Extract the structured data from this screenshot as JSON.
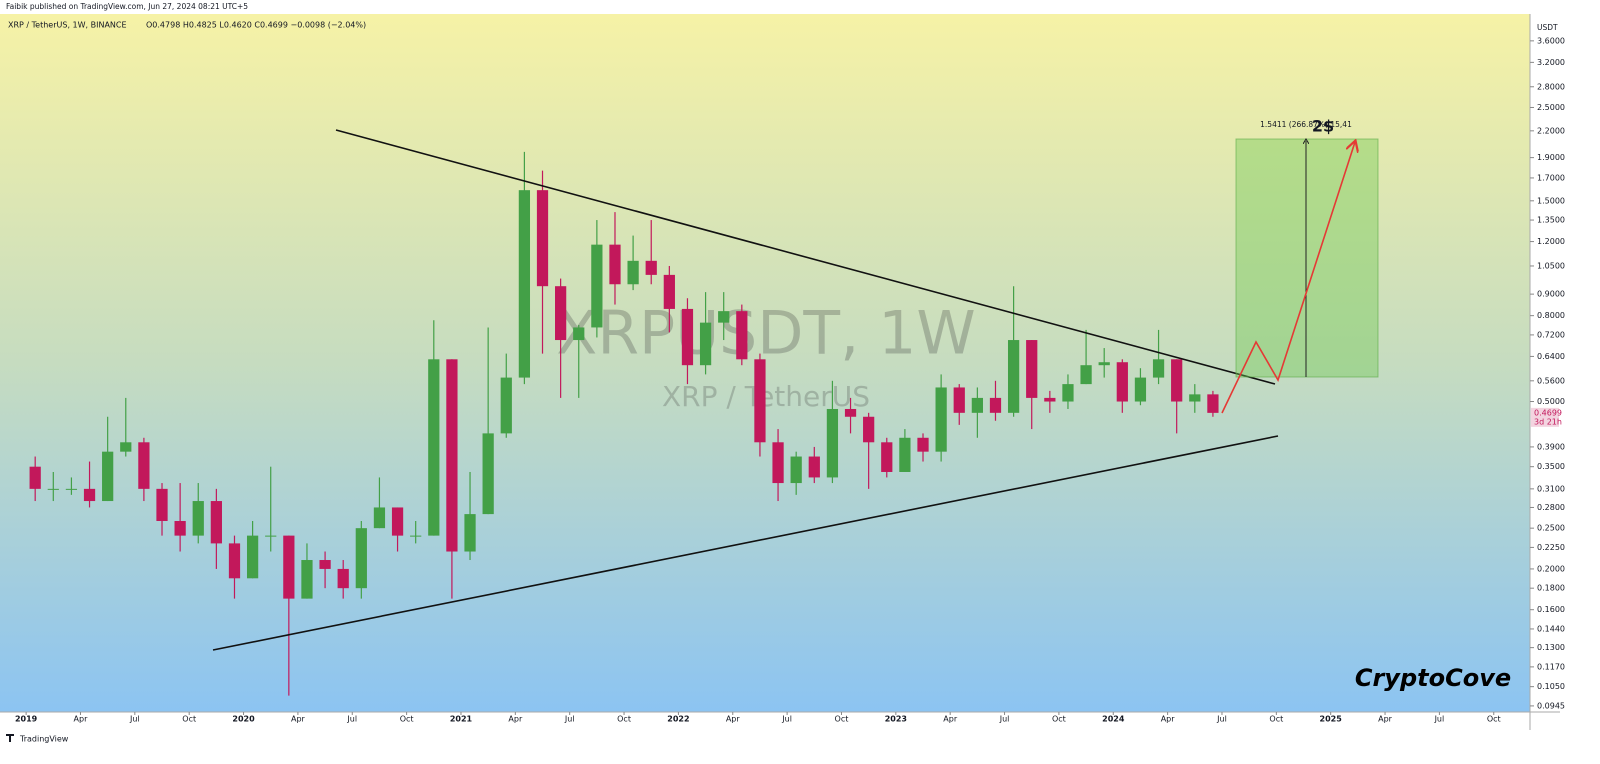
{
  "chart_data": {
    "type": "candlestick",
    "publisher": "Faibik published on TradingView.com, Jun 27, 2024 08:21 UTC+5",
    "title": "XRP / TetherUS, 1W, BINANCE",
    "legend_text": "O0.4798 H0.4825 L0.4620 C0.4699 −0.0098 (−2.04%)",
    "axis_unit": "USDT",
    "watermark": "XRPUSDT, 1W",
    "watermark_sub": "XRP / TetherUS",
    "projection_text": "1.5411 (266.87%) 15,41",
    "target_label": "2$",
    "brand": "CryptoCove",
    "footer": "TradingView",
    "log_scale": true,
    "grid": false,
    "up_color": "#43a047",
    "down_color": "#c2185b",
    "price_label": {
      "value": 0.4699,
      "label": "0.4699",
      "countdown": "3d 21h"
    },
    "x": [
      "2019-01",
      "2019-02",
      "2019-03",
      "2019-04",
      "2019-05",
      "2019-06",
      "2019-07",
      "2019-08",
      "2019-09",
      "2019-10",
      "2019-11",
      "2019-12",
      "2020-01",
      "2020-02",
      "2020-03",
      "2020-04",
      "2020-05",
      "2020-06",
      "2020-07",
      "2020-08",
      "2020-09",
      "2020-10",
      "2020-11",
      "2020-12",
      "2021-01",
      "2021-02",
      "2021-03",
      "2021-04",
      "2021-05",
      "2021-06",
      "2021-07",
      "2021-08",
      "2021-09",
      "2021-10",
      "2021-11",
      "2021-12",
      "2022-01",
      "2022-02",
      "2022-03",
      "2022-04",
      "2022-05",
      "2022-06",
      "2022-07",
      "2022-08",
      "2022-09",
      "2022-10",
      "2022-11",
      "2022-12",
      "2023-01",
      "2023-02",
      "2023-03",
      "2023-04",
      "2023-05",
      "2023-06",
      "2023-07",
      "2023-08",
      "2023-09",
      "2023-10",
      "2023-11",
      "2023-12",
      "2024-01",
      "2024-02",
      "2024-03",
      "2024-04",
      "2024-05",
      "2024-06"
    ],
    "open": [
      0.35,
      0.31,
      0.31,
      0.31,
      0.29,
      0.38,
      0.4,
      0.31,
      0.26,
      0.24,
      0.29,
      0.23,
      0.19,
      0.24,
      0.24,
      0.17,
      0.21,
      0.2,
      0.18,
      0.25,
      0.28,
      0.24,
      0.24,
      0.63,
      0.22,
      0.27,
      0.42,
      0.57,
      1.59,
      0.94,
      0.7,
      0.75,
      1.18,
      0.95,
      1.08,
      1.0,
      0.83,
      0.61,
      0.77,
      0.82,
      0.63,
      0.4,
      0.32,
      0.37,
      0.33,
      0.48,
      0.46,
      0.4,
      0.34,
      0.41,
      0.38,
      0.54,
      0.47,
      0.51,
      0.47,
      0.7,
      0.51,
      0.5,
      0.55,
      0.61,
      0.62,
      0.5,
      0.57,
      0.63,
      0.5,
      0.52
    ],
    "high": [
      0.37,
      0.34,
      0.33,
      0.36,
      0.46,
      0.51,
      0.41,
      0.32,
      0.32,
      0.32,
      0.31,
      0.24,
      0.26,
      0.35,
      0.24,
      0.23,
      0.22,
      0.21,
      0.26,
      0.33,
      0.28,
      0.26,
      0.78,
      0.63,
      0.34,
      0.75,
      0.65,
      1.96,
      1.77,
      0.98,
      0.76,
      1.35,
      1.41,
      1.24,
      1.35,
      1.05,
      0.88,
      0.91,
      0.91,
      0.85,
      0.65,
      0.43,
      0.38,
      0.39,
      0.56,
      0.51,
      0.47,
      0.41,
      0.43,
      0.42,
      0.58,
      0.55,
      0.54,
      0.56,
      0.94,
      0.7,
      0.53,
      0.58,
      0.74,
      0.67,
      0.63,
      0.6,
      0.74,
      0.63,
      0.55,
      0.53
    ],
    "low": [
      0.29,
      0.29,
      0.3,
      0.28,
      0.29,
      0.37,
      0.29,
      0.24,
      0.22,
      0.23,
      0.2,
      0.17,
      0.19,
      0.22,
      0.1,
      0.17,
      0.18,
      0.17,
      0.17,
      0.25,
      0.22,
      0.23,
      0.24,
      0.17,
      0.21,
      0.27,
      0.41,
      0.55,
      0.65,
      0.51,
      0.51,
      0.71,
      0.85,
      0.92,
      0.95,
      0.73,
      0.55,
      0.58,
      0.7,
      0.61,
      0.37,
      0.29,
      0.3,
      0.32,
      0.32,
      0.42,
      0.31,
      0.33,
      0.34,
      0.36,
      0.36,
      0.44,
      0.41,
      0.45,
      0.46,
      0.43,
      0.47,
      0.48,
      0.55,
      0.57,
      0.47,
      0.49,
      0.55,
      0.42,
      0.47,
      0.46
    ],
    "close": [
      0.31,
      0.31,
      0.31,
      0.29,
      0.38,
      0.4,
      0.31,
      0.26,
      0.24,
      0.29,
      0.23,
      0.19,
      0.24,
      0.24,
      0.17,
      0.21,
      0.2,
      0.18,
      0.25,
      0.28,
      0.24,
      0.24,
      0.63,
      0.22,
      0.27,
      0.42,
      0.57,
      1.59,
      0.94,
      0.7,
      0.75,
      1.18,
      0.95,
      1.08,
      1.0,
      0.83,
      0.61,
      0.77,
      0.82,
      0.63,
      0.4,
      0.32,
      0.37,
      0.33,
      0.48,
      0.46,
      0.4,
      0.34,
      0.41,
      0.38,
      0.54,
      0.47,
      0.51,
      0.47,
      0.7,
      0.51,
      0.5,
      0.55,
      0.61,
      0.62,
      0.5,
      0.57,
      0.63,
      0.5,
      0.52,
      0.4699
    ],
    "xlim": [
      "2018-12",
      "2025-12"
    ],
    "xticks": [
      {
        "value": "2019-01",
        "label": "2019"
      },
      {
        "value": "2019-04",
        "label": "Apr"
      },
      {
        "value": "2019-07",
        "label": "Jul"
      },
      {
        "value": "2019-10",
        "label": "Oct"
      },
      {
        "value": "2020-01",
        "label": "2020"
      },
      {
        "value": "2020-04",
        "label": "Apr"
      },
      {
        "value": "2020-07",
        "label": "Jul"
      },
      {
        "value": "2020-10",
        "label": "Oct"
      },
      {
        "value": "2021-01",
        "label": "2021"
      },
      {
        "value": "2021-04",
        "label": "Apr"
      },
      {
        "value": "2021-07",
        "label": "Jul"
      },
      {
        "value": "2021-10",
        "label": "Oct"
      },
      {
        "value": "2022-01",
        "label": "2022"
      },
      {
        "value": "2022-04",
        "label": "Apr"
      },
      {
        "value": "2022-07",
        "label": "Jul"
      },
      {
        "value": "2022-10",
        "label": "Oct"
      },
      {
        "value": "2023-01",
        "label": "2023"
      },
      {
        "value": "2023-04",
        "label": "Apr"
      },
      {
        "value": "2023-07",
        "label": "Jul"
      },
      {
        "value": "2023-10",
        "label": "Oct"
      },
      {
        "value": "2024-01",
        "label": "2024"
      },
      {
        "value": "2024-04",
        "label": "Apr"
      },
      {
        "value": "2024-07",
        "label": "Jul"
      },
      {
        "value": "2024-10",
        "label": "Oct"
      },
      {
        "value": "2025-01",
        "label": "2025"
      },
      {
        "value": "2025-04",
        "label": "Apr"
      },
      {
        "value": "2025-07",
        "label": "Jul"
      },
      {
        "value": "2025-10",
        "label": "Oct"
      }
    ],
    "ylim": [
      0.0914,
      4.17
    ],
    "yticks": [
      {
        "value": 3.6,
        "label": "3.6000"
      },
      {
        "value": 3.2,
        "label": "3.2000"
      },
      {
        "value": 2.8,
        "label": "2.8000"
      },
      {
        "value": 2.5,
        "label": "2.5000"
      },
      {
        "value": 2.2,
        "label": "2.2000"
      },
      {
        "value": 1.9,
        "label": "1.9000"
      },
      {
        "value": 1.7,
        "label": "1.7000"
      },
      {
        "value": 1.5,
        "label": "1.5000"
      },
      {
        "value": 1.35,
        "label": "1.3500"
      },
      {
        "value": 1.2,
        "label": "1.2000"
      },
      {
        "value": 1.05,
        "label": "1.0500"
      },
      {
        "value": 0.9,
        "label": "0.9000"
      },
      {
        "value": 0.8,
        "label": "0.8000"
      },
      {
        "value": 0.72,
        "label": "0.7200"
      },
      {
        "value": 0.64,
        "label": "0.6400"
      },
      {
        "value": 0.56,
        "label": "0.5600"
      },
      {
        "value": 0.5,
        "label": "0.5000"
      },
      {
        "value": 0.39,
        "label": "0.3900"
      },
      {
        "value": 0.35,
        "label": "0.3500"
      },
      {
        "value": 0.31,
        "label": "0.3100"
      },
      {
        "value": 0.28,
        "label": "0.2800"
      },
      {
        "value": 0.25,
        "label": "0.2500"
      },
      {
        "value": 0.225,
        "label": "0.2250"
      },
      {
        "value": 0.2,
        "label": "0.2000"
      },
      {
        "value": 0.18,
        "label": "0.1800"
      },
      {
        "value": 0.16,
        "label": "0.1600"
      },
      {
        "value": 0.144,
        "label": "0.1440"
      },
      {
        "value": 0.13,
        "label": "0.1300"
      },
      {
        "value": 0.117,
        "label": "0.1170"
      },
      {
        "value": 0.105,
        "label": "0.1050"
      },
      {
        "value": 0.0945,
        "label": "0.0945"
      }
    ]
  }
}
